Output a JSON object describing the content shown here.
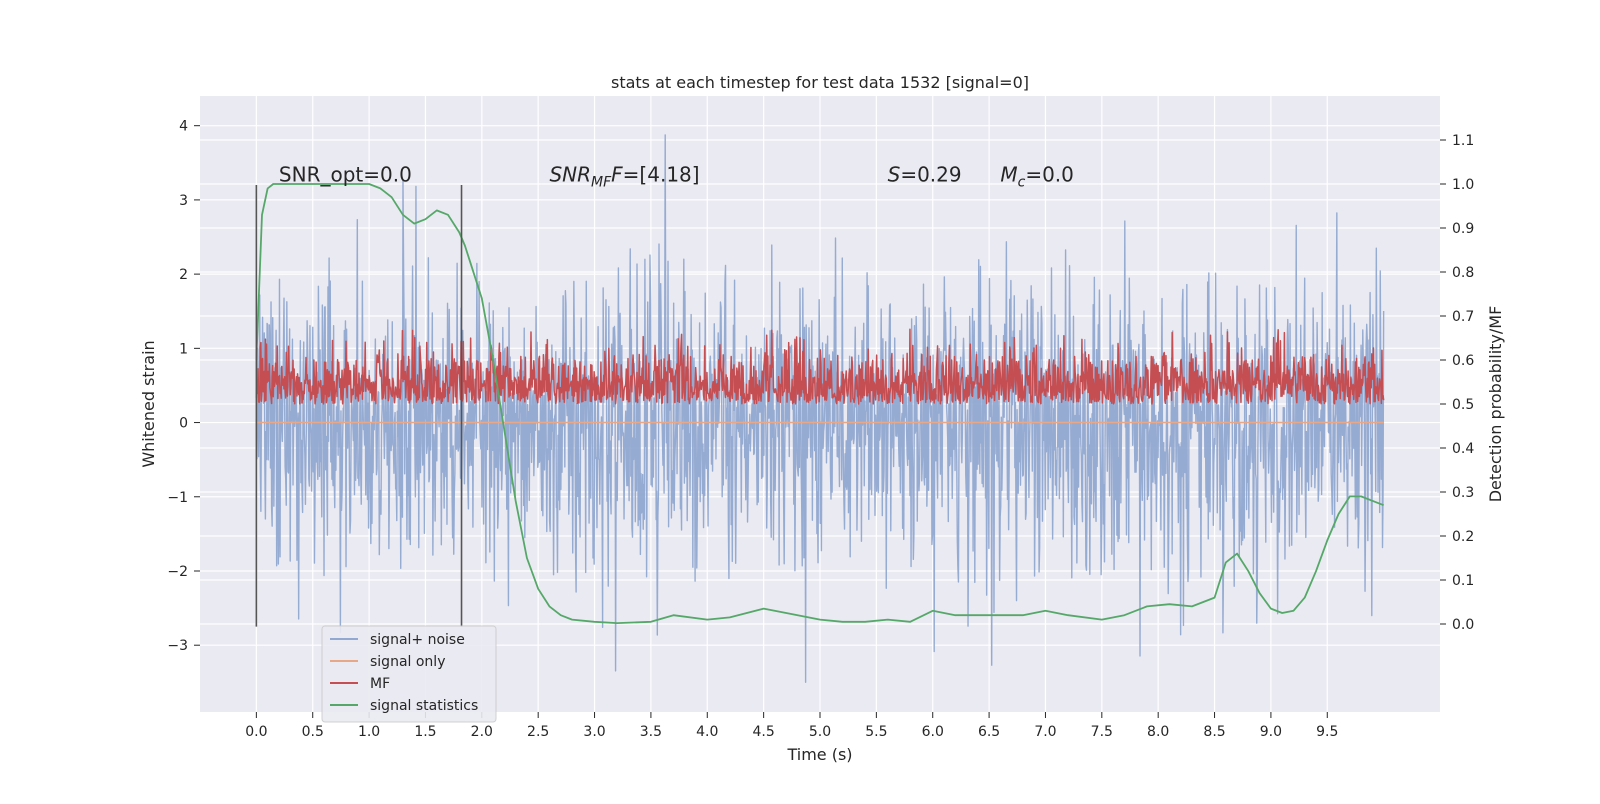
{
  "chart_data": {
    "type": "line",
    "title": "stats at each timestep for test data 1532 [signal=0]",
    "xlabel": "Time (s)",
    "ylabel": "Whitened strain",
    "y2label": "Detection probability/MF",
    "xlim": [
      -0.5,
      10.5
    ],
    "ylim": [
      -3.9,
      4.4
    ],
    "y2lim": [
      -0.2,
      1.2
    ],
    "x_ticks": [
      0.0,
      0.5,
      1.0,
      1.5,
      2.0,
      2.5,
      3.0,
      3.5,
      4.0,
      4.5,
      5.0,
      5.5,
      6.0,
      6.5,
      7.0,
      7.5,
      8.0,
      8.5,
      9.0,
      9.5
    ],
    "x_tick_labels": [
      "0.0",
      "0.5",
      "1.0",
      "1.5",
      "2.0",
      "2.5",
      "3.0",
      "3.5",
      "4.0",
      "4.5",
      "5.0",
      "5.5",
      "6.0",
      "6.5",
      "7.0",
      "7.5",
      "8.0",
      "8.5",
      "9.0",
      "9.5"
    ],
    "y_ticks": [
      -3,
      -2,
      -1,
      0,
      1,
      2,
      3,
      4
    ],
    "y_tick_labels": [
      "−3",
      "−2",
      "−1",
      "0",
      "1",
      "2",
      "3",
      "4"
    ],
    "y2_ticks": [
      0.0,
      0.1,
      0.2,
      0.3,
      0.4,
      0.5,
      0.6,
      0.7,
      0.8,
      0.9,
      1.0,
      1.1
    ],
    "y2_tick_labels": [
      "0.0",
      "0.1",
      "0.2",
      "0.3",
      "0.4",
      "0.5",
      "0.6",
      "0.7",
      "0.8",
      "0.9",
      "1.0",
      "1.1"
    ],
    "grid": true,
    "legend_position": "lower-left",
    "annotations": [
      {
        "x": 0.2,
        "y": 3.25,
        "parts": [
          {
            "t": "SNR_opt=0.0",
            "i": false
          }
        ]
      },
      {
        "x": 2.6,
        "y": 3.25,
        "parts": [
          {
            "t": "SNR",
            "i": true
          },
          {
            "t": "MF",
            "i": true,
            "sub": true
          },
          {
            "t": "F",
            "i": true
          },
          {
            "t": "=[4.18]",
            "i": false
          }
        ]
      },
      {
        "x": 5.6,
        "y": 3.25,
        "parts": [
          {
            "t": "S",
            "i": true
          },
          {
            "t": "=0.29",
            "i": false
          }
        ]
      },
      {
        "x": 6.6,
        "y": 3.25,
        "parts": [
          {
            "t": "M",
            "i": true
          },
          {
            "t": "c",
            "i": true,
            "sub": true
          },
          {
            "t": "=0.0",
            "i": false
          }
        ]
      }
    ],
    "vertical_markers": [
      {
        "x": 0.0,
        "y_range": [
          -2.75,
          3.2
        ]
      },
      {
        "x": 1.82,
        "y_range": [
          -2.75,
          3.2
        ]
      }
    ],
    "series": [
      {
        "name": "signal+ noise",
        "color": "#91a8d0",
        "axis": "left",
        "generated": {
          "t0": 0.0,
          "t1": 10.0,
          "samples": 2000,
          "mean": 0.0,
          "sd": 1.0,
          "clip": [
            -3.6,
            4.05
          ]
        }
      },
      {
        "name": "signal only",
        "color": "#e8a888",
        "axis": "left",
        "x": [
          0.0,
          10.0
        ],
        "y": [
          0.0,
          0.0
        ]
      },
      {
        "name": "MF",
        "color": "#c44e52",
        "axis": "right",
        "generated": {
          "t0": 0.0,
          "t1": 10.0,
          "samples": 2000,
          "base": 0.5,
          "sd": 0.06,
          "clip": [
            0.5,
            0.7
          ]
        }
      },
      {
        "name": "signal statistics",
        "color": "#55a868",
        "axis": "right",
        "x": [
          0.0,
          0.05,
          0.1,
          0.15,
          0.2,
          0.3,
          0.5,
          0.7,
          1.0,
          1.1,
          1.2,
          1.3,
          1.4,
          1.5,
          1.6,
          1.7,
          1.8,
          1.85,
          1.9,
          2.0,
          2.1,
          2.2,
          2.3,
          2.4,
          2.5,
          2.6,
          2.7,
          2.8,
          3.0,
          3.2,
          3.5,
          3.7,
          4.0,
          4.2,
          4.5,
          4.7,
          5.0,
          5.2,
          5.4,
          5.6,
          5.8,
          6.0,
          6.2,
          6.5,
          6.8,
          7.0,
          7.2,
          7.5,
          7.7,
          7.9,
          8.1,
          8.3,
          8.5,
          8.6,
          8.7,
          8.8,
          8.9,
          9.0,
          9.1,
          9.2,
          9.3,
          9.4,
          9.5,
          9.6,
          9.7,
          9.8,
          9.9,
          10.0
        ],
        "y": [
          0.6,
          0.93,
          0.99,
          1.0,
          1.0,
          1.0,
          1.0,
          1.0,
          1.0,
          0.99,
          0.97,
          0.93,
          0.91,
          0.92,
          0.94,
          0.93,
          0.89,
          0.86,
          0.82,
          0.74,
          0.6,
          0.44,
          0.28,
          0.15,
          0.08,
          0.04,
          0.02,
          0.01,
          0.005,
          0.002,
          0.005,
          0.02,
          0.01,
          0.015,
          0.035,
          0.025,
          0.01,
          0.005,
          0.005,
          0.01,
          0.005,
          0.03,
          0.02,
          0.02,
          0.02,
          0.03,
          0.02,
          0.01,
          0.02,
          0.04,
          0.045,
          0.04,
          0.06,
          0.14,
          0.16,
          0.12,
          0.07,
          0.035,
          0.025,
          0.03,
          0.06,
          0.12,
          0.19,
          0.25,
          0.29,
          0.29,
          0.28,
          0.27
        ]
      }
    ]
  }
}
